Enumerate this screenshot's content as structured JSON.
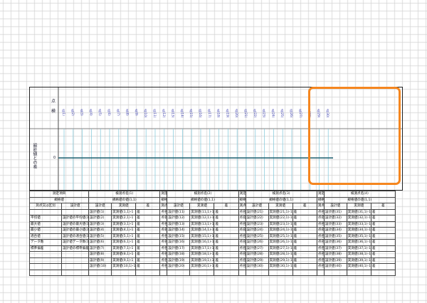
{
  "y_axis": {
    "label": "設計値との差",
    "top_chars": [
      "点",
      "検"
    ],
    "zero_label": "0"
  },
  "points": [
    "点(1)",
    "点(2)",
    "点(3)",
    "点(4)",
    "点(5)",
    "点(6)",
    "点(7)",
    "点(8)",
    "点(9)",
    "点(10)",
    "点(11)",
    "点(12)",
    "点(13)",
    "点(14)",
    "点(15)",
    "点(16)",
    "点(17)",
    "点(18)",
    "点(19)",
    "点(20)",
    "点(21)",
    "点(22)",
    "点(23)",
    "点(24)",
    "点(25)",
    "点(26)",
    "点(27)",
    "点(28)",
    "点(29)",
    "点(30)"
  ],
  "table": {
    "header1": {
      "item": "測定項目",
      "group": [
        "検測点名(1)",
        "検測点名(2)",
        "検測点名(3)",
        "検測点名(4)"
      ]
    },
    "header2": {
      "spec": "規格値",
      "specs": [
        "規格値の値(1,1)",
        "規格値の値(1,1)",
        "規格値の値(1,1)",
        "規格値の値(1,1)"
      ]
    },
    "header3": {
      "seq": "測点又は区別",
      "design": "設計値",
      "measured": "実測値",
      "diff": "差"
    },
    "left_labels": [
      "平均値",
      "最大値",
      "最小値",
      "適合値",
      "データ数",
      "標準偏差"
    ],
    "left_values": [
      "設計値の平均値",
      "設計値の最大値",
      "設計値の最小値",
      "設計値の適合値",
      "設計値データ数",
      "設計値の標準偏差"
    ],
    "left_right": [
      "(1)-1",
      "(1)-1",
      "(1)-1",
      "(1)-1",
      "(1)-1",
      "(1)-1"
    ],
    "groups": [
      {
        "start": 1
      },
      {
        "start": 11
      },
      {
        "start": 21
      },
      {
        "start": 31
      }
    ]
  }
}
